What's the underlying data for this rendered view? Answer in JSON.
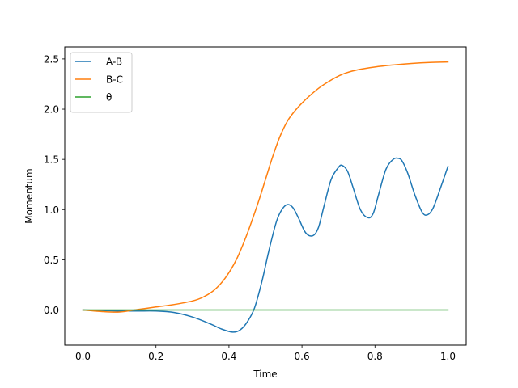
{
  "chart_data": {
    "type": "line",
    "xlabel": "Time",
    "ylabel": "Momentum",
    "xlim": [
      -0.05,
      1.05
    ],
    "ylim": [
      -0.35,
      2.62
    ],
    "xticks": [
      0.0,
      0.2,
      0.4,
      0.6,
      0.8,
      1.0
    ],
    "yticks": [
      0.0,
      0.5,
      1.0,
      1.5,
      2.0,
      2.5
    ],
    "xtick_labels": [
      "0.0",
      "0.2",
      "0.4",
      "0.6",
      "0.8",
      "1.0"
    ],
    "ytick_labels": [
      "0.0",
      "0.5",
      "1.0",
      "1.5",
      "2.0",
      "2.5"
    ],
    "grid": false,
    "legend_position": "top-left",
    "series": [
      {
        "name": "A-B",
        "color": "#1f77b4",
        "x": [
          0.0,
          0.05,
          0.1,
          0.15,
          0.2,
          0.25,
          0.3,
          0.35,
          0.38,
          0.41,
          0.43,
          0.45,
          0.47,
          0.49,
          0.51,
          0.53,
          0.545,
          0.56,
          0.575,
          0.59,
          0.61,
          0.63,
          0.645,
          0.66,
          0.68,
          0.7,
          0.71,
          0.725,
          0.74,
          0.76,
          0.78,
          0.795,
          0.81,
          0.83,
          0.85,
          0.865,
          0.875,
          0.89,
          0.91,
          0.93,
          0.945,
          0.96,
          0.98,
          1.0
        ],
        "y": [
          0.0,
          -0.005,
          -0.01,
          -0.01,
          -0.01,
          -0.025,
          -0.07,
          -0.14,
          -0.19,
          -0.22,
          -0.2,
          -0.12,
          0.02,
          0.28,
          0.6,
          0.88,
          1.0,
          1.05,
          1.02,
          0.92,
          0.77,
          0.74,
          0.82,
          1.03,
          1.3,
          1.42,
          1.44,
          1.38,
          1.22,
          1.0,
          0.92,
          0.96,
          1.15,
          1.4,
          1.5,
          1.51,
          1.48,
          1.36,
          1.14,
          0.97,
          0.95,
          1.02,
          1.22,
          1.43
        ]
      },
      {
        "name": "B-C",
        "color": "#ff7f0e",
        "x": [
          0.0,
          0.05,
          0.1,
          0.15,
          0.2,
          0.25,
          0.3,
          0.33,
          0.36,
          0.39,
          0.42,
          0.45,
          0.48,
          0.5,
          0.52,
          0.54,
          0.56,
          0.58,
          0.6,
          0.62,
          0.65,
          0.68,
          0.7,
          0.72,
          0.75,
          0.8,
          0.85,
          0.9,
          0.95,
          1.0
        ],
        "y": [
          0.0,
          -0.015,
          -0.02,
          0.005,
          0.03,
          0.055,
          0.09,
          0.13,
          0.2,
          0.32,
          0.5,
          0.76,
          1.07,
          1.3,
          1.53,
          1.73,
          1.88,
          1.98,
          2.06,
          2.13,
          2.22,
          2.29,
          2.33,
          2.36,
          2.39,
          2.42,
          2.44,
          2.455,
          2.465,
          2.47
        ]
      },
      {
        "name": "θ",
        "color": "#2ca02c",
        "x": [
          0.0,
          1.0
        ],
        "y": [
          0.0,
          0.0
        ]
      }
    ]
  }
}
